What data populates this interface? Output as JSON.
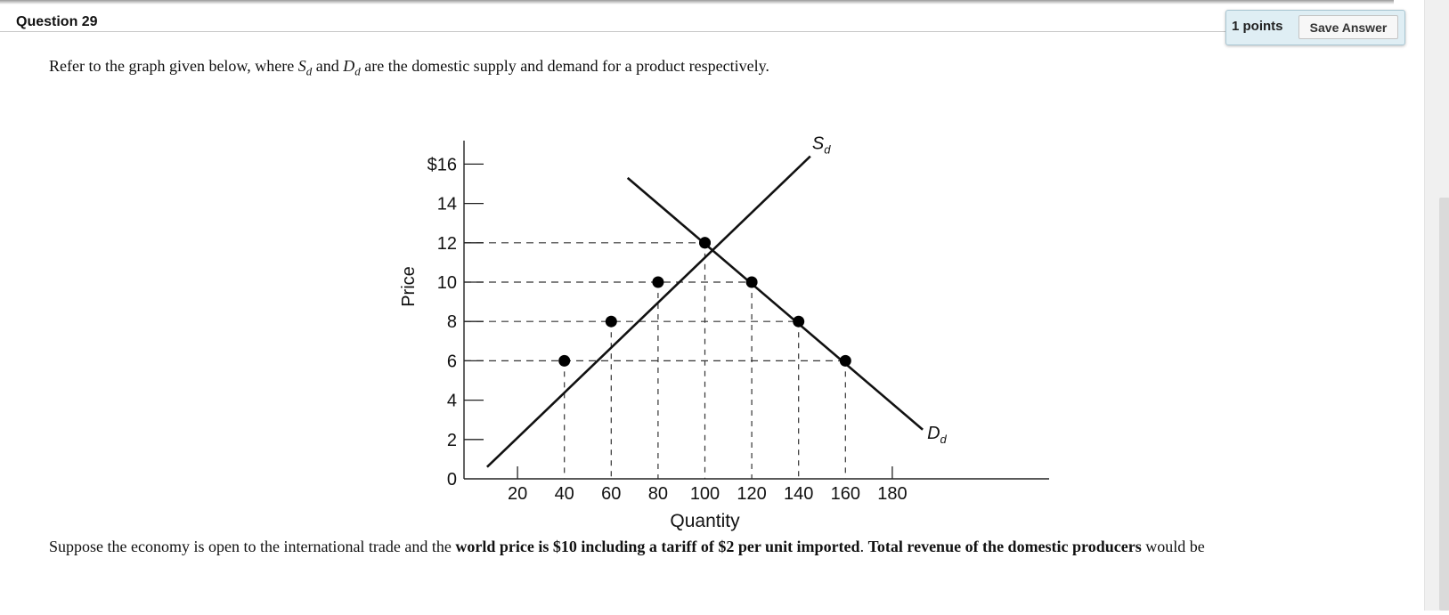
{
  "question": {
    "title": "Question 29",
    "points_label": "1 points",
    "save_label": "Save Answer",
    "prompt_before": "Refer to the graph given below, where ",
    "s_symbol": "S",
    "s_sub": "d",
    "prompt_mid": " and ",
    "d_symbol": "D",
    "d_sub": "d",
    "prompt_after": " are the domestic supply and demand for a product respectively.",
    "followup_1": "Suppose the economy is open to the international trade and the ",
    "followup_bold_1": "world price is $10 including a tariff of $2 per unit imported",
    "followup_2": ". ",
    "followup_bold_2": "Total revenue of the domestic producers",
    "followup_3": " would be"
  },
  "chart_data": {
    "type": "line",
    "xlabel": "Quantity",
    "ylabel": "Price",
    "xlim": [
      0,
      230
    ],
    "ylim": [
      0,
      17
    ],
    "x_ticks": [
      20,
      40,
      60,
      80,
      100,
      120,
      140,
      160,
      180
    ],
    "y_ticks": [
      0,
      2,
      4,
      6,
      8,
      10,
      12,
      14,
      16
    ],
    "y_tick_labels": [
      "0",
      "2",
      "4",
      "6",
      "8",
      "10",
      "12",
      "14",
      "$16"
    ],
    "series": [
      {
        "name": "S",
        "name_sub": "d",
        "line": [
          [
            7,
            0.6
          ],
          [
            145,
            16.4
          ]
        ],
        "points": [
          [
            40,
            6
          ],
          [
            60,
            8
          ],
          [
            80,
            10
          ],
          [
            100,
            12
          ]
        ]
      },
      {
        "name": "D",
        "name_sub": "d",
        "line": [
          [
            67,
            15.3
          ],
          [
            193,
            2.5
          ]
        ],
        "points": [
          [
            100,
            12
          ],
          [
            120,
            10
          ],
          [
            140,
            8
          ],
          [
            160,
            6
          ]
        ]
      }
    ],
    "dashed_levels": [
      {
        "price": 12,
        "to_quantity": 100
      },
      {
        "price": 10,
        "to_quantity": 120
      },
      {
        "price": 8,
        "to_quantity": 140
      },
      {
        "price": 6,
        "to_quantity": 160
      }
    ],
    "dashed_drops": [
      {
        "quantity": 40,
        "price": 6
      },
      {
        "quantity": 60,
        "price": 8
      },
      {
        "quantity": 80,
        "price": 10
      },
      {
        "quantity": 100,
        "price": 12
      },
      {
        "quantity": 120,
        "price": 10
      },
      {
        "quantity": 140,
        "price": 8
      },
      {
        "quantity": 160,
        "price": 6
      }
    ]
  }
}
